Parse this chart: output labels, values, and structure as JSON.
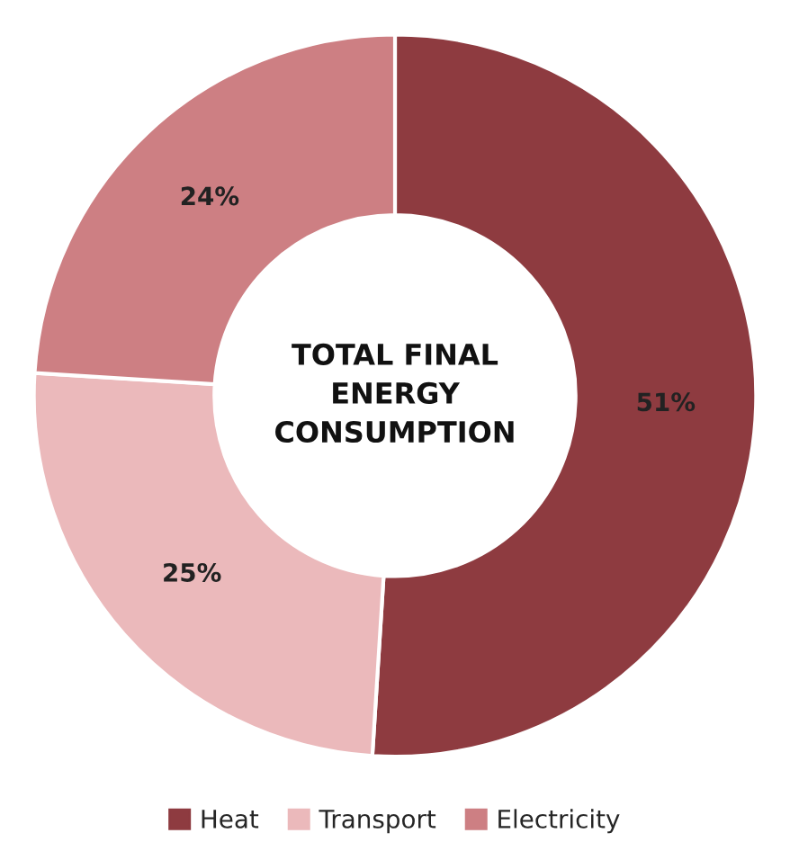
{
  "chart_data": {
    "type": "donut",
    "title": "TOTAL FINAL\nENERGY\nCONSUMPTION",
    "categories": [
      "Heat",
      "Transport",
      "Electricity"
    ],
    "values": [
      51,
      25,
      24
    ],
    "value_labels": [
      "51%",
      "25%",
      "24%"
    ],
    "colors": [
      "#8e3b40",
      "#ebb9bb",
      "#cd7f83"
    ],
    "legend": "bottom"
  }
}
